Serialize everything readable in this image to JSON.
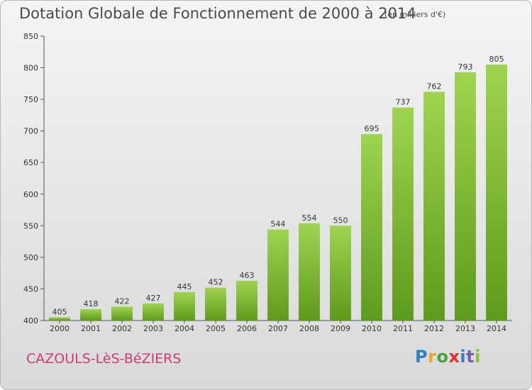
{
  "header": {
    "title": "Dotation Globale de Fonctionnement de 2000 à 2014",
    "unit": "(en milliers d'€)"
  },
  "footer": {
    "commune": "CAZOULS-LèS-BéZIERS",
    "logo_letters": [
      "P",
      "r",
      "o",
      "x",
      "i",
      "t",
      "i"
    ],
    "logo_colors": [
      "#2f7fc6",
      "#e7a52a",
      "#4aa43c",
      "#e3312d",
      "#2f7fc6",
      "#7a5aa8",
      "#8ac43a"
    ]
  },
  "chart_data": {
    "type": "bar",
    "categories": [
      "2000",
      "2001",
      "2002",
      "2003",
      "2004",
      "2005",
      "2006",
      "2007",
      "2008",
      "2009",
      "2010",
      "2011",
      "2012",
      "2013",
      "2014"
    ],
    "values": [
      405,
      418,
      422,
      427,
      445,
      452,
      463,
      544,
      554,
      550,
      695,
      737,
      762,
      793,
      805
    ],
    "title": "Dotation Globale de Fonctionnement de 2000 à 2014",
    "ylim": [
      400,
      850
    ],
    "yticks": [
      400,
      450,
      500,
      550,
      600,
      650,
      700,
      750,
      800,
      850
    ],
    "bar_color": "#8cc63f",
    "grid": false
  }
}
